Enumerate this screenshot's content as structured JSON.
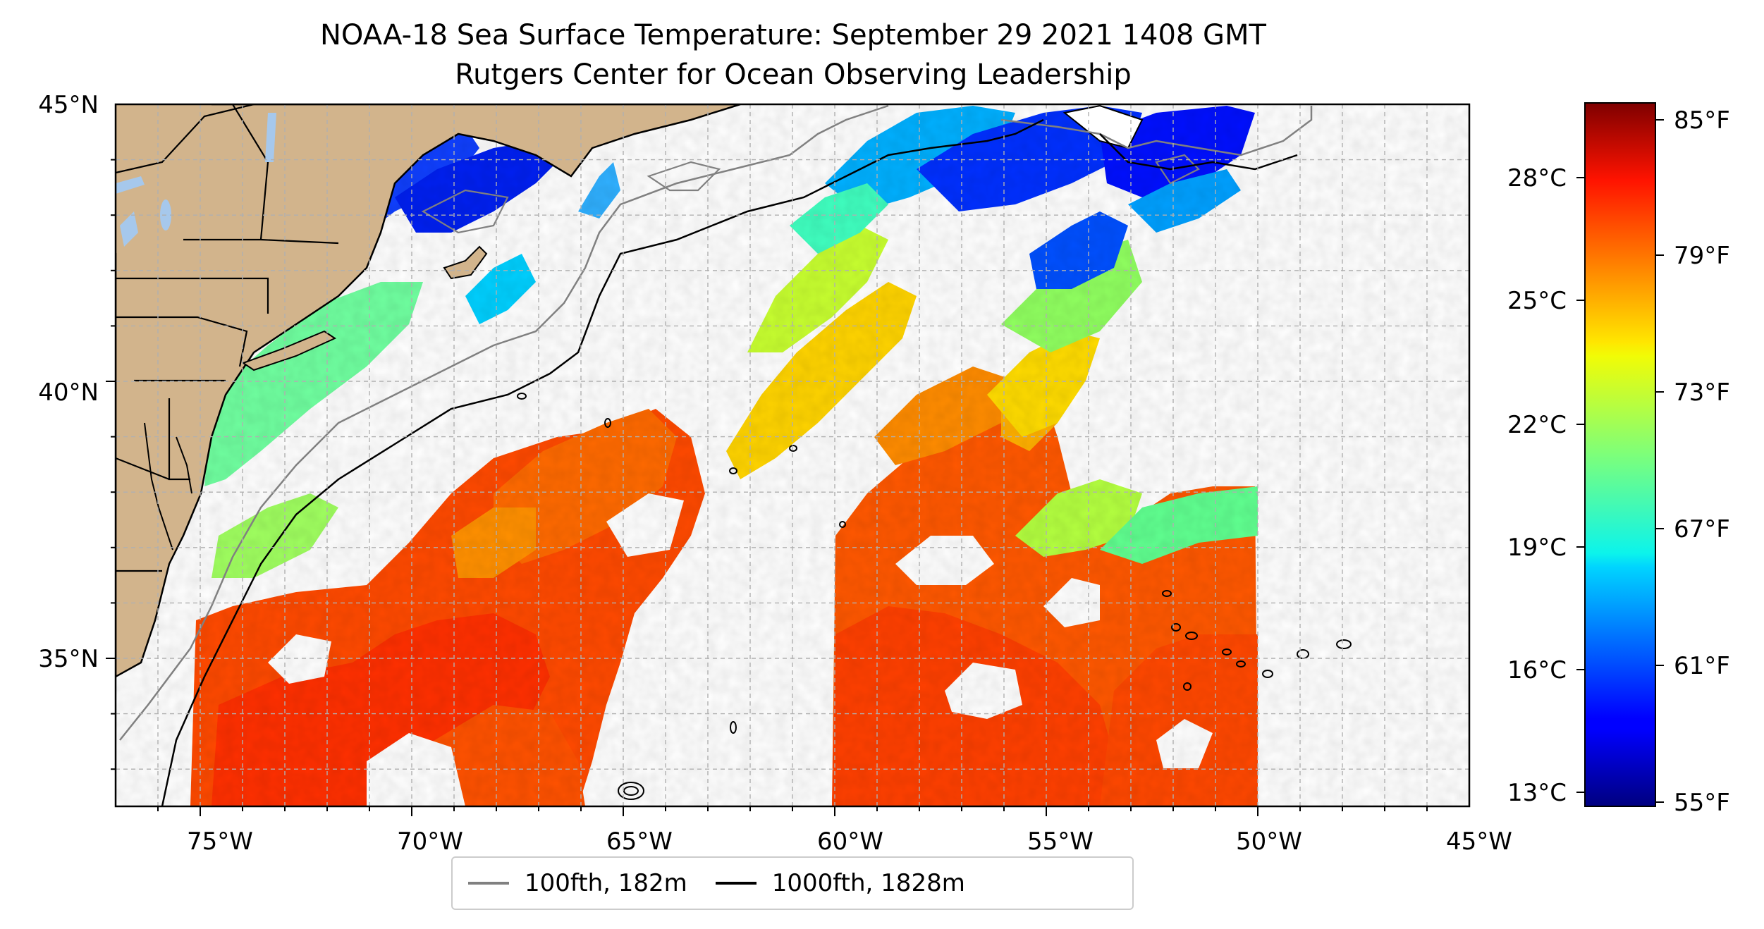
{
  "title": "NOAA-18 Sea Surface Temperature: September 29 2021 1408 GMT",
  "subtitle": "Rutgers Center for Ocean Observing Leadership",
  "lon_ticks": [
    "75°W",
    "70°W",
    "65°W",
    "60°W",
    "55°W",
    "50°W",
    "45°W"
  ],
  "lat_ticks": [
    "45°N",
    "40°N",
    "35°N"
  ],
  "colorbar": {
    "celsius_ticks": [
      "28°C",
      "25°C",
      "22°C",
      "19°C",
      "16°C",
      "13°C"
    ],
    "fahrenheit_ticks": [
      "85°F",
      "79°F",
      "73°F",
      "67°F",
      "61°F",
      "55°F"
    ],
    "range_f": [
      55,
      86
    ],
    "colormap": "jet"
  },
  "legend": [
    {
      "label": "100fth, 182m",
      "color": "#808080"
    },
    {
      "label": "1000fth, 1828m",
      "color": "#000000"
    }
  ],
  "colors": {
    "land": "#d2b48c",
    "lakes": "#a6c8ec",
    "grid": "#b0b0b0"
  }
}
